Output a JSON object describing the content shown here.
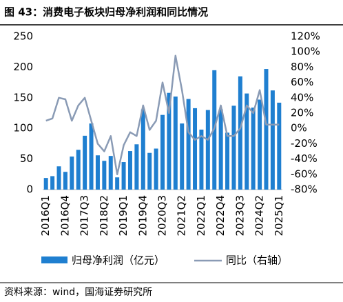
{
  "chart_data": {
    "type": "bar_line",
    "title": "图 43：消费电子板块归母净利润和同比情况",
    "source": "资料来源：wind，国海证券研究所",
    "categories": [
      "2016Q1",
      null,
      null,
      "2016Q4",
      null,
      null,
      "2017Q3",
      null,
      null,
      "2018Q2",
      null,
      null,
      "2019Q1",
      null,
      null,
      "2019Q4",
      null,
      null,
      "2020Q3",
      null,
      null,
      "2021Q2",
      null,
      null,
      "2022Q1",
      null,
      null,
      "2022Q4",
      null,
      null,
      "2023Q3",
      null,
      null,
      "2024Q2",
      null,
      null,
      "2025Q1"
    ],
    "series": [
      {
        "name": "归母净利润（亿元）",
        "color": "#1f7fd0",
        "values": [
          19,
          22,
          38,
          29,
          54,
          65,
          88,
          108,
          56,
          47,
          55,
          20,
          45,
          63,
          74,
          131,
          60,
          67,
          122,
          158,
          152,
          108,
          148,
          133,
          98,
          130,
          195,
          131,
          93,
          137,
          185,
          157,
          134,
          147,
          197,
          162,
          142
        ]
      },
      {
        "name": "同比（右轴）",
        "color": "#8a9bb5",
        "axis": "y2",
        "values": [
          10,
          13,
          40,
          38,
          10,
          30,
          40,
          10,
          -20,
          -30,
          -10,
          -60,
          -22,
          -5,
          -10,
          30,
          -2,
          10,
          60,
          20,
          95,
          50,
          -5,
          -15,
          -10,
          -15,
          0,
          30,
          -10,
          -10,
          0,
          30,
          20,
          50,
          5,
          5,
          5
        ]
      }
    ],
    "ylim": [
      0,
      250
    ],
    "yticks": [
      0,
      50,
      100,
      150,
      200,
      250
    ],
    "y2lim": [
      -80,
      120
    ],
    "y2ticks": [
      {
        "value": -80,
        "label": "-80%"
      },
      {
        "value": -60,
        "label": "-60%"
      },
      {
        "value": -40,
        "label": "-40%"
      },
      {
        "value": -20,
        "label": "-20%"
      },
      {
        "value": 0,
        "label": "0%"
      },
      {
        "value": 20,
        "label": "20%"
      },
      {
        "value": 40,
        "label": "40%"
      },
      {
        "value": 60,
        "label": "60%"
      },
      {
        "value": 80,
        "label": "80%"
      },
      {
        "value": 100,
        "label": "100%"
      },
      {
        "value": 120,
        "label": "120%"
      }
    ]
  }
}
